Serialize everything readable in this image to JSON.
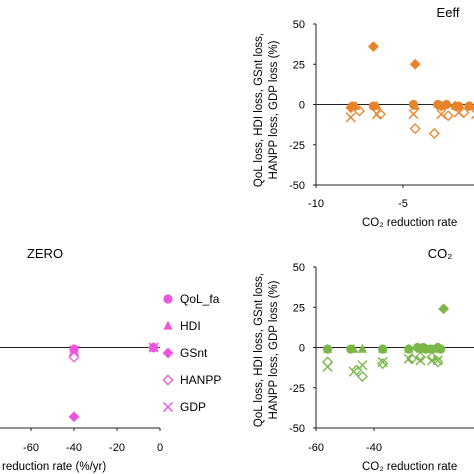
{
  "chart_data": [
    {
      "type": "scatter",
      "title": "Eeff",
      "ylabel_lines": [
        "QoL loss, HDI loss, GSnt loss,",
        "HANPP loss, GDP loss (%)"
      ],
      "xlabel": "CO₂ reduction rate",
      "xlim": [
        -10,
        0
      ],
      "ylim": [
        -50,
        50
      ],
      "xticks": [
        -10,
        -5
      ],
      "yticks": [
        50,
        25,
        0,
        -25,
        -50
      ],
      "xtick_labels": [
        "-10",
        "-5"
      ],
      "ytick_labels": [
        "50",
        "25",
        "0",
        "-25",
        "-50"
      ],
      "color": "#e8832a",
      "series": [
        {
          "name": "QoL_fa",
          "marker": "circle",
          "x": [
            -7.9,
            -6.7,
            -4.4,
            -3.0,
            -2.5,
            -1.8,
            -1.2,
            -0.3
          ],
          "y": [
            -1,
            -1,
            0,
            0,
            0,
            -1,
            -1,
            -1
          ]
        },
        {
          "name": "HDI",
          "marker": "triangle",
          "x": [
            -7.7,
            -6.5,
            -4.3,
            -2.8,
            -2.0,
            -1.1,
            -0.4
          ],
          "y": [
            -1,
            -1,
            -1,
            -1,
            -1,
            -1,
            -1
          ]
        },
        {
          "name": "GSnt",
          "marker": "diamond",
          "x": [
            -6.7,
            -4.3,
            -8.0,
            -2.8,
            -2.0
          ],
          "y": [
            36,
            25,
            -2,
            -1,
            -1
          ]
        },
        {
          "name": "HANPP",
          "marker": "diamond-open",
          "x": [
            -7.5,
            -6.3,
            -4.3,
            -3.2,
            -2.4,
            -1.5,
            -0.6
          ],
          "y": [
            -4,
            -6,
            -15,
            -18,
            -7,
            -5,
            -4
          ]
        },
        {
          "name": "GDP",
          "marker": "cross",
          "x": [
            -8.0,
            -6.5,
            -4.4,
            -2.8,
            -1.8,
            -0.8
          ],
          "y": [
            -8,
            -6,
            -6,
            -6,
            -5,
            -6
          ]
        }
      ]
    },
    {
      "type": "scatter",
      "title": "ZERO",
      "xlabel": "reduction rate (%/yr)",
      "xlim": [
        -80,
        0
      ],
      "ylim": [
        -50,
        50
      ],
      "xticks": [
        -60,
        -40,
        -20,
        0
      ],
      "xtick_labels": [
        "-60",
        "-40",
        "-20",
        "0"
      ],
      "color": "#ee55dd",
      "legend": [
        "QoL_fa",
        "HDI",
        "GSnt",
        "HANPP",
        "GDP"
      ],
      "series": [
        {
          "name": "QoL_fa",
          "marker": "circle",
          "x": [
            -40,
            -3
          ],
          "y": [
            -1,
            0
          ]
        },
        {
          "name": "HDI",
          "marker": "triangle",
          "x": [
            -40,
            -3
          ],
          "y": [
            -1,
            0
          ]
        },
        {
          "name": "GSnt",
          "marker": "diamond",
          "x": [
            -40,
            -3
          ],
          "y": [
            -43,
            0
          ]
        },
        {
          "name": "HANPP",
          "marker": "diamond-open",
          "x": [
            -40
          ],
          "y": [
            -6
          ]
        },
        {
          "name": "GDP",
          "marker": "cross",
          "x": [
            -40,
            -3
          ],
          "y": [
            -2,
            0
          ]
        }
      ]
    },
    {
      "type": "scatter",
      "title": "CO₂",
      "ylabel_lines": [
        "QoL loss, HDI loss, GSnt loss,",
        "HANPP loss, GDP loss (%)"
      ],
      "xlabel": "CO₂ reduction rate",
      "xlim": [
        -60,
        0
      ],
      "ylim": [
        -50,
        50
      ],
      "xticks": [
        -60,
        -40
      ],
      "yticks": [
        50,
        25,
        0,
        -25,
        -50
      ],
      "xtick_labels": [
        "-60",
        "-40"
      ],
      "ytick_labels": [
        "50",
        "25",
        "0",
        "-25",
        "-50"
      ],
      "color": "#7ab648",
      "series": [
        {
          "name": "QoL_fa",
          "marker": "circle",
          "x": [
            -56,
            -48,
            -37,
            -28,
            -25,
            -23,
            -22,
            -20,
            -18,
            -17
          ],
          "y": [
            -1,
            -1,
            -1,
            -1,
            0,
            0,
            -1,
            -1,
            0,
            -1
          ]
        },
        {
          "name": "HDI",
          "marker": "triangle",
          "x": [
            -56,
            -47,
            -44,
            -37,
            -28,
            -24,
            -21,
            -18
          ],
          "y": [
            -1,
            -1,
            -1,
            -1,
            -1,
            -1,
            -1,
            -1
          ]
        },
        {
          "name": "GSnt",
          "marker": "diamond",
          "x": [
            -16
          ],
          "y": [
            24
          ]
        },
        {
          "name": "HANPP",
          "marker": "diamond-open",
          "x": [
            -56,
            -46,
            -44,
            -37,
            -27,
            -24,
            -20,
            -18
          ],
          "y": [
            -9,
            -14,
            -18,
            -10,
            -7,
            -6,
            -6,
            -9
          ]
        },
        {
          "name": "GDP",
          "marker": "cross",
          "x": [
            -56,
            -47,
            -44,
            -37,
            -28,
            -24,
            -20,
            -18
          ],
          "y": [
            -12,
            -15,
            -11,
            -9,
            -7,
            -8,
            -8,
            -8
          ]
        }
      ]
    }
  ]
}
